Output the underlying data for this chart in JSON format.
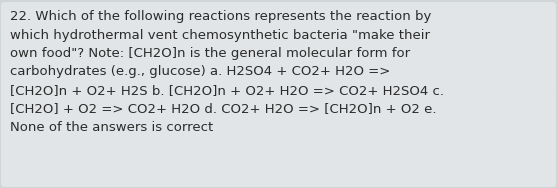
{
  "lines": [
    "22. Which of the following reactions represents the reaction by",
    "which hydrothermal vent chemosynthetic bacteria \"make their",
    "own food\"? Note: [CH2O]n is the general molecular form for",
    "carbohydrates (e.g., glucose) a. H2SO4 + CO2+ H2O =>",
    "[CH2O]n + O2+ H2S b. [CH2O]n + O2+ H2O => CO2+ H2SO4 c.",
    "[CH2O] + O2 => CO2+ H2O d. CO2+ H2O => [CH2O]n + O2 e.",
    "None of the answers is correct"
  ],
  "bg_color": "#d0d5d8",
  "panel_color": "#e2e5e7",
  "text_color": "#2b2b2b",
  "font_size": 9.5,
  "fig_width": 5.58,
  "fig_height": 1.88,
  "dpi": 100
}
